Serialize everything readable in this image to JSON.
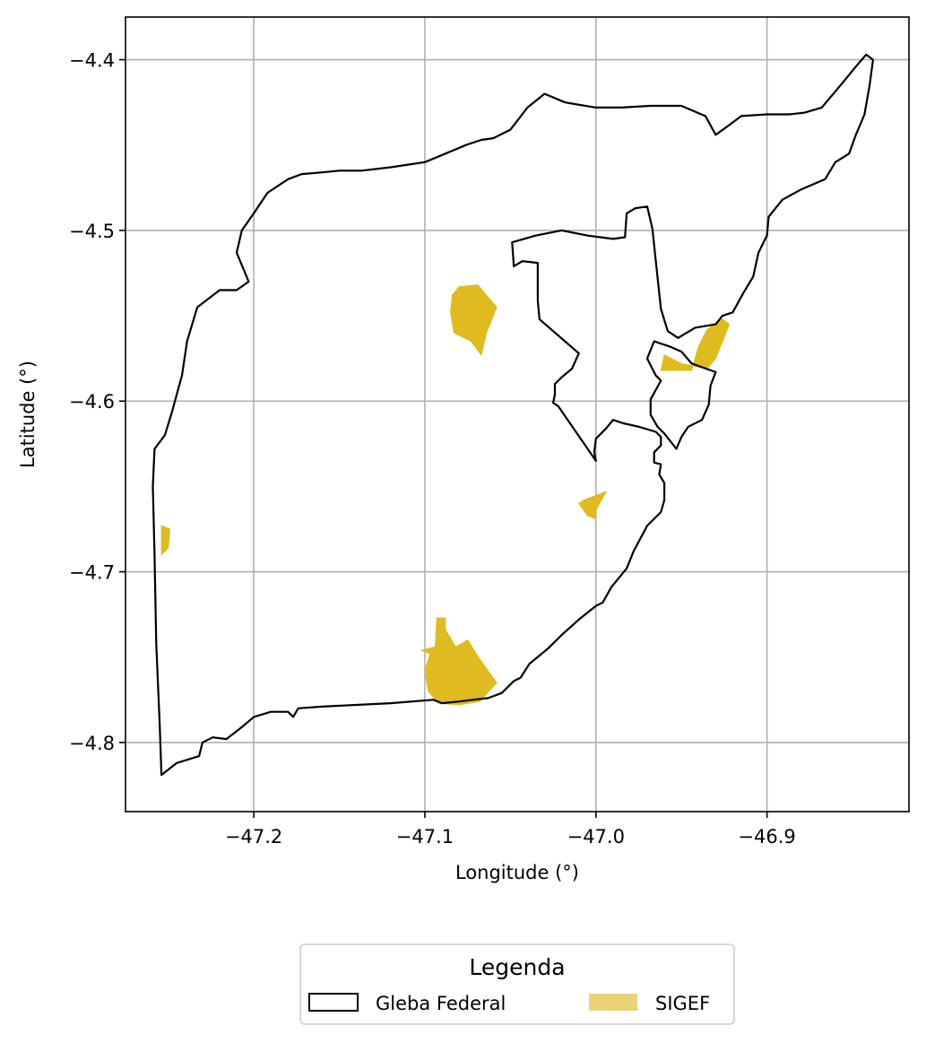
{
  "chart_data": {
    "type": "map",
    "xlabel": "Longitude (°)",
    "ylabel": "Latitude (°)",
    "xlim": [
      -47.275,
      -46.817
    ],
    "ylim": [
      -4.8405,
      -4.375
    ],
    "xticks": [
      -47.2,
      -47.1,
      -47.0,
      -46.9
    ],
    "xtick_labels": [
      "−47.2",
      "−47.1",
      "−47.0",
      "−46.9"
    ],
    "yticks": [
      -4.4,
      -4.5,
      -4.6,
      -4.7,
      -4.8
    ],
    "ytick_labels": [
      "−4.4",
      "−4.5",
      "−4.6",
      "−4.7",
      "−4.8"
    ],
    "grid": true,
    "legend": {
      "title": "Legenda",
      "placement": "bottom-center",
      "entries": [
        {
          "label": "Gleba Federal",
          "style": "outline",
          "color": "#000000"
        },
        {
          "label": "SIGEF",
          "style": "fill",
          "color": "#ebd277"
        }
      ]
    },
    "layers": [
      {
        "name": "Gleba Federal",
        "style": "outline",
        "color": "#000000",
        "rings": [
          [
            [
              -47.254,
              -4.819
            ],
            [
              -47.245,
              -4.812
            ],
            [
              -47.232,
              -4.808
            ],
            [
              -47.23,
              -4.8
            ],
            [
              -47.224,
              -4.797
            ],
            [
              -47.216,
              -4.798
            ],
            [
              -47.207,
              -4.791
            ],
            [
              -47.2,
              -4.785
            ],
            [
              -47.19,
              -4.782
            ],
            [
              -47.18,
              -4.782
            ],
            [
              -47.177,
              -4.785
            ],
            [
              -47.174,
              -4.78
            ],
            [
              -47.16,
              -4.779
            ],
            [
              -47.14,
              -4.778
            ],
            [
              -47.12,
              -4.777
            ],
            [
              -47.095,
              -4.775
            ],
            [
              -47.09,
              -4.777
            ],
            [
              -47.08,
              -4.776
            ],
            [
              -47.072,
              -4.775
            ],
            [
              -47.063,
              -4.774
            ],
            [
              -47.055,
              -4.771
            ],
            [
              -47.048,
              -4.764
            ],
            [
              -47.044,
              -4.762
            ],
            [
              -47.039,
              -4.754
            ],
            [
              -47.028,
              -4.745
            ],
            [
              -47.02,
              -4.737
            ],
            [
              -47.01,
              -4.728
            ],
            [
              -47.0,
              -4.72
            ],
            [
              -46.996,
              -4.718
            ],
            [
              -46.991,
              -4.709
            ],
            [
              -46.982,
              -4.698
            ],
            [
              -46.978,
              -4.688
            ],
            [
              -46.97,
              -4.673
            ],
            [
              -46.962,
              -4.665
            ],
            [
              -46.96,
              -4.658
            ],
            [
              -46.96,
              -4.648
            ],
            [
              -46.963,
              -4.643
            ],
            [
              -46.962,
              -4.637
            ],
            [
              -46.966,
              -4.636
            ],
            [
              -46.966,
              -4.63
            ],
            [
              -46.962,
              -4.626
            ],
            [
              -46.962,
              -4.621
            ],
            [
              -46.965,
              -4.618
            ],
            [
              -46.975,
              -4.615
            ],
            [
              -46.984,
              -4.613
            ],
            [
              -46.99,
              -4.611
            ],
            [
              -46.994,
              -4.616
            ],
            [
              -47.0,
              -4.622
            ],
            [
              -47.001,
              -4.63
            ],
            [
              -47.0,
              -4.635
            ],
            [
              -47.022,
              -4.603
            ],
            [
              -47.025,
              -4.601
            ],
            [
              -47.024,
              -4.596
            ],
            [
              -47.024,
              -4.59
            ],
            [
              -47.02,
              -4.586
            ],
            [
              -47.014,
              -4.581
            ],
            [
              -47.01,
              -4.572
            ],
            [
              -47.033,
              -4.552
            ],
            [
              -47.034,
              -4.541
            ],
            [
              -47.034,
              -4.519
            ],
            [
              -47.043,
              -4.518
            ],
            [
              -47.048,
              -4.521
            ],
            [
              -47.049,
              -4.507
            ],
            [
              -47.035,
              -4.503
            ],
            [
              -47.02,
              -4.5
            ],
            [
              -47.005,
              -4.503
            ],
            [
              -46.99,
              -4.505
            ],
            [
              -46.983,
              -4.504
            ],
            [
              -46.982,
              -4.49
            ],
            [
              -46.977,
              -4.487
            ],
            [
              -46.97,
              -4.486
            ],
            [
              -46.967,
              -4.499
            ],
            [
              -46.965,
              -4.518
            ],
            [
              -46.962,
              -4.546
            ],
            [
              -46.958,
              -4.559
            ],
            [
              -46.952,
              -4.563
            ],
            [
              -46.942,
              -4.557
            ],
            [
              -46.93,
              -4.555
            ],
            [
              -46.926,
              -4.55
            ],
            [
              -46.92,
              -4.548
            ],
            [
              -46.914,
              -4.537
            ],
            [
              -46.908,
              -4.527
            ],
            [
              -46.905,
              -4.513
            ],
            [
              -46.9,
              -4.503
            ],
            [
              -46.899,
              -4.492
            ],
            [
              -46.891,
              -4.482
            ],
            [
              -46.88,
              -4.476
            ],
            [
              -46.866,
              -4.47
            ],
            [
              -46.86,
              -4.46
            ],
            [
              -46.852,
              -4.455
            ],
            [
              -46.848,
              -4.444
            ],
            [
              -46.843,
              -4.432
            ],
            [
              -46.84,
              -4.415
            ],
            [
              -46.838,
              -4.4
            ],
            [
              -46.842,
              -4.397
            ],
            [
              -46.848,
              -4.404
            ],
            [
              -46.857,
              -4.415
            ],
            [
              -46.868,
              -4.428
            ],
            [
              -46.878,
              -4.431
            ],
            [
              -46.887,
              -4.432
            ],
            [
              -46.9,
              -4.432
            ],
            [
              -46.915,
              -4.433
            ],
            [
              -46.923,
              -4.439
            ],
            [
              -46.93,
              -4.444
            ],
            [
              -46.936,
              -4.433
            ],
            [
              -46.95,
              -4.427
            ],
            [
              -46.968,
              -4.427
            ],
            [
              -46.985,
              -4.428
            ],
            [
              -47.0,
              -4.428
            ],
            [
              -47.018,
              -4.425
            ],
            [
              -47.03,
              -4.42
            ],
            [
              -47.04,
              -4.428
            ],
            [
              -47.05,
              -4.441
            ],
            [
              -47.06,
              -4.446
            ],
            [
              -47.067,
              -4.447
            ],
            [
              -47.076,
              -4.45
            ],
            [
              -47.088,
              -4.455
            ],
            [
              -47.1,
              -4.46
            ],
            [
              -47.12,
              -4.463
            ],
            [
              -47.137,
              -4.465
            ],
            [
              -47.15,
              -4.465
            ],
            [
              -47.16,
              -4.466
            ],
            [
              -47.172,
              -4.467
            ],
            [
              -47.18,
              -4.47
            ],
            [
              -47.192,
              -4.478
            ],
            [
              -47.2,
              -4.49
            ],
            [
              -47.207,
              -4.5
            ],
            [
              -47.21,
              -4.513
            ],
            [
              -47.203,
              -4.53
            ],
            [
              -47.21,
              -4.535
            ],
            [
              -47.22,
              -4.535
            ],
            [
              -47.233,
              -4.545
            ],
            [
              -47.239,
              -4.565
            ],
            [
              -47.242,
              -4.585
            ],
            [
              -47.248,
              -4.607
            ],
            [
              -47.252,
              -4.62
            ],
            [
              -47.258,
              -4.628
            ],
            [
              -47.259,
              -4.65
            ],
            [
              -47.258,
              -4.69
            ],
            [
              -47.257,
              -4.742
            ],
            [
              -47.255,
              -4.79
            ],
            [
              -47.254,
              -4.819
            ]
          ],
          [
            [
              -46.962,
              -4.588
            ],
            [
              -46.965,
              -4.585
            ],
            [
              -46.97,
              -4.575
            ],
            [
              -46.966,
              -4.565
            ],
            [
              -46.957,
              -4.568
            ],
            [
              -46.95,
              -4.571
            ],
            [
              -46.944,
              -4.578
            ],
            [
              -46.93,
              -4.583
            ],
            [
              -46.933,
              -4.591
            ],
            [
              -46.934,
              -4.602
            ],
            [
              -46.938,
              -4.611
            ],
            [
              -46.946,
              -4.615
            ],
            [
              -46.95,
              -4.621
            ],
            [
              -46.953,
              -4.628
            ],
            [
              -46.96,
              -4.619
            ],
            [
              -46.964,
              -4.615
            ],
            [
              -46.968,
              -4.608
            ],
            [
              -46.968,
              -4.599
            ],
            [
              -46.962,
              -4.588
            ]
          ]
        ]
      },
      {
        "name": "SIGEF",
        "style": "fill",
        "color": "#dfbb1f",
        "parcels": [
          [
            [
              -47.08,
              -4.533
            ],
            [
              -47.069,
              -4.532
            ],
            [
              -47.058,
              -4.545
            ],
            [
              -47.064,
              -4.56
            ],
            [
              -47.067,
              -4.573
            ],
            [
              -47.073,
              -4.565
            ],
            [
              -47.083,
              -4.56
            ],
            [
              -47.085,
              -4.548
            ],
            [
              -47.084,
              -4.538
            ]
          ],
          [
            [
              -47.254,
              -4.673
            ],
            [
              -47.249,
              -4.675
            ],
            [
              -47.25,
              -4.686
            ],
            [
              -47.254,
              -4.69
            ]
          ],
          [
            [
              -47.007,
              -4.658
            ],
            [
              -46.994,
              -4.653
            ],
            [
              -47.0,
              -4.664
            ],
            [
              -47.0,
              -4.669
            ],
            [
              -47.005,
              -4.667
            ],
            [
              -47.01,
              -4.66
            ]
          ],
          [
            [
              -47.102,
              -4.746
            ],
            [
              -47.094,
              -4.744
            ],
            [
              -47.093,
              -4.727
            ],
            [
              -47.088,
              -4.727
            ],
            [
              -47.088,
              -4.734
            ],
            [
              -47.082,
              -4.744
            ],
            [
              -47.075,
              -4.74
            ],
            [
              -47.068,
              -4.751
            ],
            [
              -47.058,
              -4.765
            ],
            [
              -47.068,
              -4.776
            ],
            [
              -47.08,
              -4.778
            ],
            [
              -47.092,
              -4.777
            ],
            [
              -47.098,
              -4.77
            ],
            [
              -47.1,
              -4.758
            ],
            [
              -47.097,
              -4.748
            ]
          ],
          [
            [
              -46.962,
              -4.582
            ],
            [
              -46.944,
              -4.582
            ],
            [
              -46.94,
              -4.568
            ],
            [
              -46.935,
              -4.558
            ],
            [
              -46.926,
              -4.552
            ],
            [
              -46.922,
              -4.555
            ],
            [
              -46.93,
              -4.575
            ],
            [
              -46.935,
              -4.581
            ],
            [
              -46.95,
              -4.578
            ],
            [
              -46.96,
              -4.573
            ]
          ]
        ]
      }
    ]
  }
}
